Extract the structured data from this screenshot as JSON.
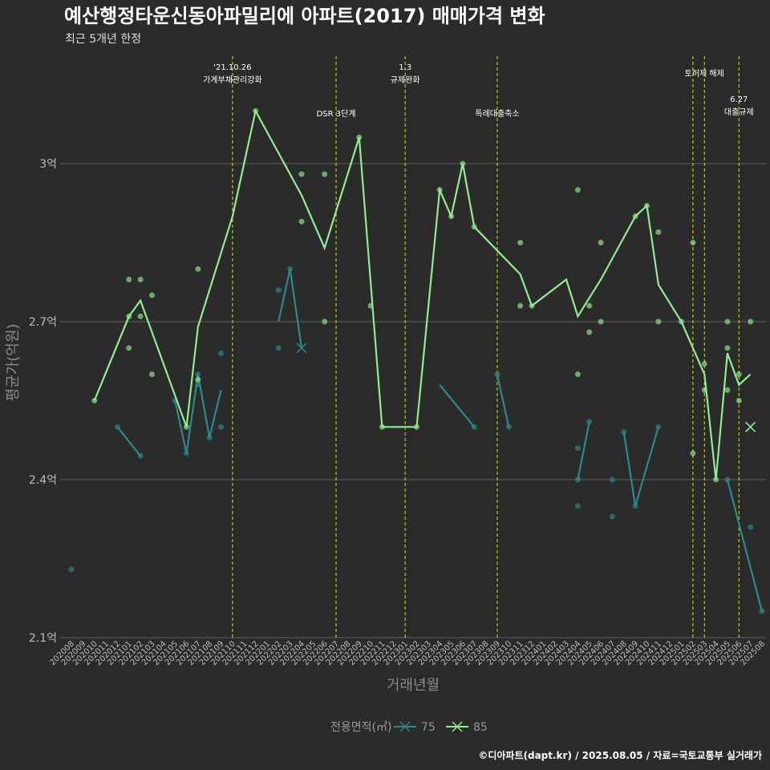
{
  "chart_data": {
    "type": "line",
    "title": "예산행정타운신동아파밀리에 아파트(2017) 매매가격 변화",
    "subtitle": "최근 5개년 한정",
    "xlabel": "거래년월",
    "ylabel": "평균가(억원)",
    "caption": "©디아파트(dapt.kr) / 2025.08.05 / 자료=국토교통부 실거래가",
    "legend_title": "전용면적(㎡)",
    "y_ticks": [
      {
        "value": 2.1,
        "label": "2.1억"
      },
      {
        "value": 2.4,
        "label": "2.4억"
      },
      {
        "value": 2.7,
        "label": "2.7억"
      },
      {
        "value": 3.0,
        "label": "3억"
      }
    ],
    "ylim": [
      2.1,
      3.0
    ],
    "categories": [
      "202008",
      "202009",
      "202010",
      "202011",
      "202012",
      "202101",
      "202102",
      "202103",
      "202104",
      "202105",
      "202106",
      "202107",
      "202108",
      "202109",
      "202110",
      "202111",
      "202112",
      "202201",
      "202202",
      "202203",
      "202204",
      "202205",
      "202206",
      "202207",
      "202208",
      "202209",
      "202210",
      "202211",
      "202212",
      "202301",
      "202302",
      "202303",
      "202304",
      "202305",
      "202306",
      "202307",
      "202308",
      "202309",
      "202310",
      "202311",
      "202312",
      "202401",
      "202402",
      "202403",
      "202404",
      "202405",
      "202406",
      "202407",
      "202408",
      "202409",
      "202410",
      "202411",
      "202412",
      "202501",
      "202502",
      "202503",
      "202504",
      "202505",
      "202506",
      "202507",
      "202508"
    ],
    "series": [
      {
        "name": "75",
        "color": "#2a8a8c",
        "line_points": [
          [
            4,
            2.5
          ],
          [
            6,
            2.445
          ],
          [
            9,
            2.55
          ],
          [
            10,
            2.45
          ],
          [
            11,
            2.6
          ],
          [
            12,
            2.48
          ],
          [
            13,
            2.57
          ],
          [
            18,
            2.7
          ],
          [
            19,
            2.8
          ],
          [
            20,
            2.65
          ],
          [
            32,
            2.58
          ],
          [
            35,
            2.5
          ],
          [
            37,
            2.6
          ],
          [
            38,
            2.5
          ],
          [
            44,
            2.4
          ],
          [
            45,
            2.51
          ],
          [
            48,
            2.49
          ],
          [
            49,
            2.35
          ],
          [
            51,
            2.5
          ],
          [
            57,
            2.4
          ],
          [
            60,
            2.15
          ]
        ],
        "line_breaks": [
          2,
          7,
          10,
          12,
          14,
          16,
          19
        ],
        "scatter": [
          [
            0,
            2.23
          ],
          [
            4,
            2.5
          ],
          [
            6,
            2.445
          ],
          [
            9,
            2.55
          ],
          [
            10,
            2.45
          ],
          [
            11,
            2.6
          ],
          [
            11,
            2.58
          ],
          [
            12,
            2.48
          ],
          [
            13,
            2.5
          ],
          [
            13,
            2.64
          ],
          [
            18,
            2.76
          ],
          [
            18,
            2.65
          ],
          [
            19,
            2.8
          ],
          [
            35,
            2.5
          ],
          [
            37,
            2.6
          ],
          [
            38,
            2.5
          ],
          [
            44,
            2.46
          ],
          [
            44,
            2.4
          ],
          [
            44,
            2.35
          ],
          [
            45,
            2.51
          ],
          [
            47,
            2.4
          ],
          [
            47,
            2.33
          ],
          [
            48,
            2.49
          ],
          [
            49,
            2.35
          ],
          [
            51,
            2.5
          ],
          [
            57,
            2.4
          ],
          [
            59,
            2.31
          ],
          [
            60,
            2.15
          ]
        ],
        "mean_marker": [
          20,
          2.65
        ]
      },
      {
        "name": "85",
        "color": "#90ee90",
        "line_points": [
          [
            2,
            2.55
          ],
          [
            5,
            2.71
          ],
          [
            6,
            2.74
          ],
          [
            10,
            2.5
          ],
          [
            11,
            2.69
          ],
          [
            14,
            2.9
          ],
          [
            16,
            3.1
          ],
          [
            20,
            2.94
          ],
          [
            22,
            2.84
          ],
          [
            25,
            3.05
          ],
          [
            27,
            2.5
          ],
          [
            30,
            2.5
          ],
          [
            32,
            2.95
          ],
          [
            33,
            2.9
          ],
          [
            34,
            3.0
          ],
          [
            35,
            2.88
          ],
          [
            39,
            2.79
          ],
          [
            40,
            2.73
          ],
          [
            43,
            2.78
          ],
          [
            44,
            2.71
          ],
          [
            46,
            2.78
          ],
          [
            49,
            2.9
          ],
          [
            50,
            2.92
          ],
          [
            51,
            2.77
          ],
          [
            53,
            2.7
          ],
          [
            54,
            2.65
          ],
          [
            55,
            2.6
          ],
          [
            56,
            2.4
          ],
          [
            57,
            2.64
          ],
          [
            58,
            2.58
          ],
          [
            59,
            2.6
          ]
        ],
        "line_breaks": [],
        "scatter": [
          [
            2,
            2.55
          ],
          [
            5,
            2.78
          ],
          [
            5,
            2.71
          ],
          [
            5,
            2.65
          ],
          [
            6,
            2.78
          ],
          [
            6,
            2.71
          ],
          [
            7,
            2.6
          ],
          [
            7,
            2.75
          ],
          [
            10,
            2.5
          ],
          [
            11,
            2.8
          ],
          [
            11,
            2.59
          ],
          [
            16,
            3.1
          ],
          [
            20,
            2.98
          ],
          [
            20,
            2.89
          ],
          [
            22,
            2.98
          ],
          [
            22,
            2.7
          ],
          [
            25,
            3.05
          ],
          [
            26,
            2.73
          ],
          [
            27,
            2.5
          ],
          [
            30,
            2.5
          ],
          [
            32,
            2.95
          ],
          [
            33,
            2.9
          ],
          [
            34,
            3.0
          ],
          [
            35,
            2.88
          ],
          [
            39,
            2.73
          ],
          [
            39,
            2.85
          ],
          [
            40,
            2.73
          ],
          [
            44,
            2.95
          ],
          [
            44,
            2.6
          ],
          [
            45,
            2.73
          ],
          [
            45,
            2.68
          ],
          [
            46,
            2.85
          ],
          [
            46,
            2.7
          ],
          [
            49,
            2.9
          ],
          [
            50,
            2.92
          ],
          [
            51,
            2.87
          ],
          [
            51,
            2.7
          ],
          [
            53,
            2.7
          ],
          [
            54,
            2.85
          ],
          [
            54,
            2.45
          ],
          [
            55,
            2.57
          ],
          [
            55,
            2.62
          ],
          [
            56,
            2.4
          ],
          [
            57,
            2.7
          ],
          [
            57,
            2.65
          ],
          [
            57,
            2.57
          ],
          [
            58,
            2.55
          ],
          [
            58,
            2.6
          ],
          [
            59,
            2.7
          ]
        ],
        "mean_marker": [
          59,
          2.5
        ]
      }
    ],
    "events": [
      {
        "index": 14,
        "label": "'21.10.26\n가계부채관리강화",
        "row": 1
      },
      {
        "index": 23,
        "label": "DSR 3단계",
        "row": 2
      },
      {
        "index": 29,
        "label": "1.3\n규제완화",
        "row": 1
      },
      {
        "index": 37,
        "label": "특례대출축소",
        "row": 2
      },
      {
        "index": 54,
        "label": "",
        "row": 0
      },
      {
        "index": 55,
        "label": "토허제 해제",
        "row": 1
      },
      {
        "index": 58,
        "label": "6.27\n대출규제",
        "row": 3
      }
    ],
    "event_color": "#e6e600",
    "grid": "horizontal",
    "legend_position": "bottom"
  }
}
